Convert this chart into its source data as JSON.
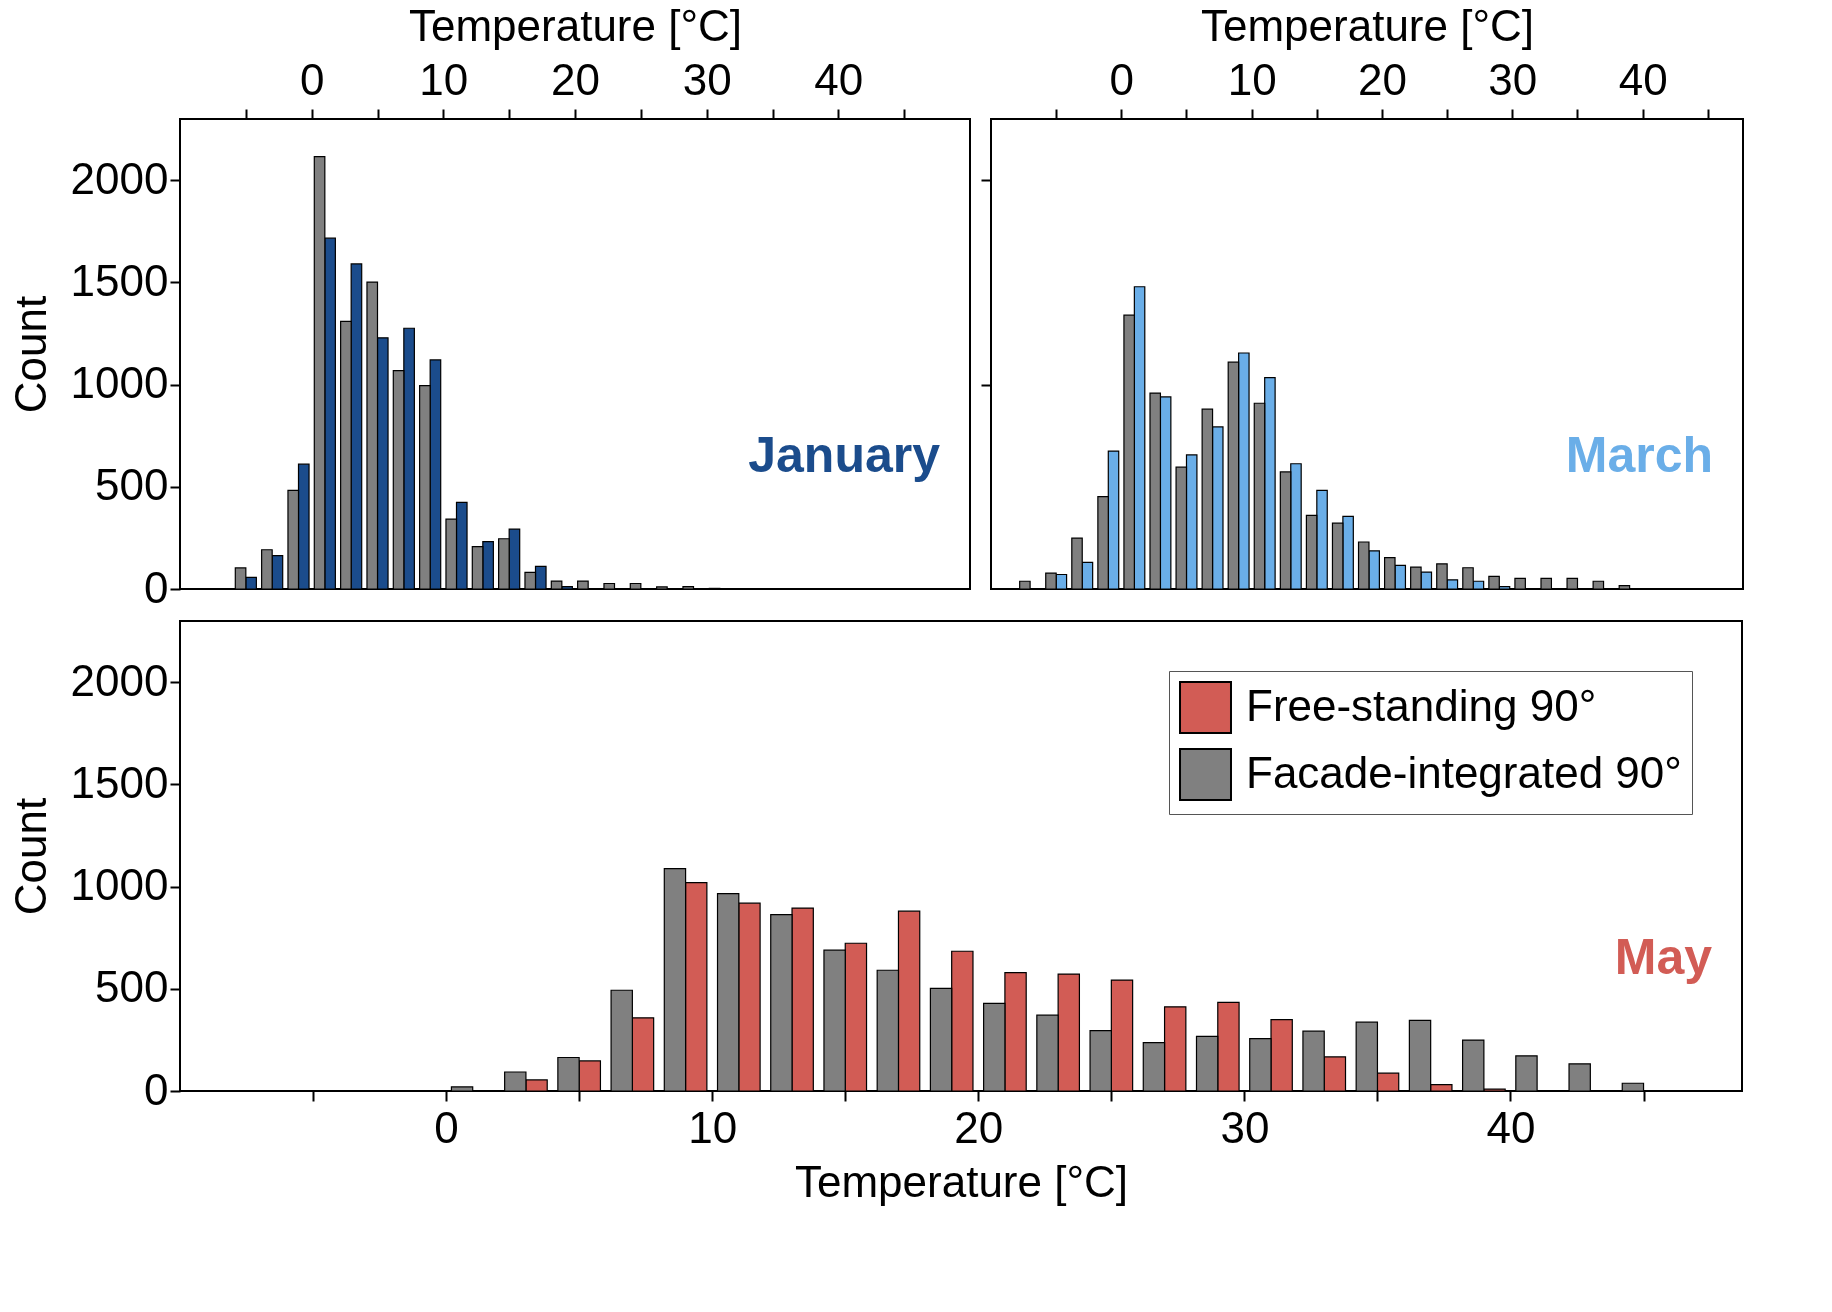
{
  "chart_data": [
    {
      "type": "histogram",
      "xlabel": "Temperature [°C]",
      "ylabel": "Count",
      "xlim": [
        -10,
        50
      ],
      "xticks": [
        {
          "value": -5,
          "label": null
        },
        0,
        {
          "value": 5,
          "label": null
        },
        10,
        {
          "value": 15,
          "label": null
        },
        20,
        {
          "value": 25,
          "label": null
        },
        30,
        {
          "value": 35,
          "label": null
        },
        40,
        {
          "value": 45,
          "label": null
        }
      ],
      "ylim": [
        0,
        2300
      ],
      "yticks": [
        0,
        500,
        1000,
        1500,
        2000
      ],
      "grid": false,
      "legend": false,
      "annotations": [
        "January"
      ],
      "bins": [
        -6,
        -4,
        -2,
        0,
        2,
        4,
        6,
        8,
        10,
        12,
        14,
        16,
        18,
        20,
        22,
        24,
        26,
        28,
        30,
        32
      ],
      "series": [
        {
          "color": "#1b4c8c",
          "values": [
            57,
            163,
            611,
            1717,
            1591,
            1229,
            1276,
            1121,
            424,
            232,
            293,
            111,
            12,
            null,
            null,
            null,
            null,
            null,
            null
          ]
        },
        {
          "color": "#808080",
          "values": [
            103,
            192,
            483,
            2116,
            1310,
            1502,
            1069,
            995,
            342,
            207,
            246,
            81,
            39,
            39,
            27,
            27,
            10,
            12,
            3
          ]
        }
      ]
    },
    {
      "type": "histogram",
      "xlabel": "Temperature [°C]",
      "xlim": [
        -10,
        47.7
      ],
      "xticks": [
        {
          "value": -5,
          "label": null
        },
        0,
        {
          "value": 5,
          "label": null
        },
        10,
        {
          "value": 15,
          "label": null
        },
        20,
        {
          "value": 25,
          "label": null
        },
        30,
        {
          "value": 35,
          "label": null
        },
        40,
        {
          "value": 45,
          "label": null
        }
      ],
      "ylim": [
        0,
        2300
      ],
      "yticks": [
        {
          "value": 1000,
          "label": null
        },
        {
          "value": 2000,
          "label": null
        }
      ],
      "tick_labels": "x",
      "grid": false,
      "legend": false,
      "annotations": [
        "March"
      ],
      "bins": [
        -8,
        -6,
        -4,
        -2,
        0,
        2,
        4,
        6,
        8,
        10,
        12,
        14,
        16,
        18,
        20,
        22,
        24,
        26,
        28,
        30,
        32,
        34,
        36,
        38,
        40
      ],
      "series": [
        {
          "color": "#6aaee8",
          "values": [
            null,
            71,
            130,
            675,
            1479,
            940,
            656,
            793,
            1155,
            1034,
            613,
            483,
            355,
            187,
            116,
            83,
            45,
            38,
            12,
            null,
            null,
            null,
            null,
            null
          ]
        },
        {
          "color": "#808080",
          "values": [
            38,
            78,
            249,
            452,
            1340,
            959,
            596,
            880,
            1110,
            909,
            573,
            360,
            322,
            230,
            154,
            107,
            123,
            104,
            62,
            52,
            52,
            52,
            38,
            17
          ]
        }
      ]
    },
    {
      "type": "histogram",
      "xlabel": "Temperature [°C]",
      "ylabel": "Count",
      "xlim": [
        -10,
        48.7
      ],
      "xticks": [
        {
          "value": -5,
          "label": null
        },
        0,
        {
          "value": 5,
          "label": null
        },
        10,
        {
          "value": 15,
          "label": null
        },
        20,
        {
          "value": 25,
          "label": null
        },
        30,
        {
          "value": 35,
          "label": null
        },
        40,
        {
          "value": 45,
          "label": null
        }
      ],
      "ylim": [
        0,
        2300
      ],
      "yticks": [
        0,
        500,
        1000,
        1500,
        2000
      ],
      "grid": false,
      "legend": "top right",
      "annotations": [
        "May"
      ],
      "bins": [
        0,
        2,
        4,
        6,
        8,
        10,
        12,
        14,
        16,
        18,
        20,
        22,
        24,
        26,
        28,
        30,
        32,
        34,
        36,
        38,
        40,
        42,
        44,
        46
      ],
      "series": [
        {
          "name": "Free-standing 90°",
          "color": "#d25c55",
          "values": [
            null,
            54,
            147,
            358,
            1020,
            919,
            895,
            723,
            880,
            684,
            579,
            572,
            543,
            412,
            434,
            349,
            167,
            87,
            31,
            9,
            null,
            null,
            null
          ]
        },
        {
          "name": "Facade-integrated 90°",
          "color": "#808080",
          "values": [
            20,
            93,
            164,
            493,
            1088,
            966,
            863,
            689,
            591,
            502,
            429,
            371,
            295,
            237,
            267,
            256,
            293,
            337,
            346,
            249,
            172,
            133,
            38
          ]
        }
      ]
    }
  ]
}
